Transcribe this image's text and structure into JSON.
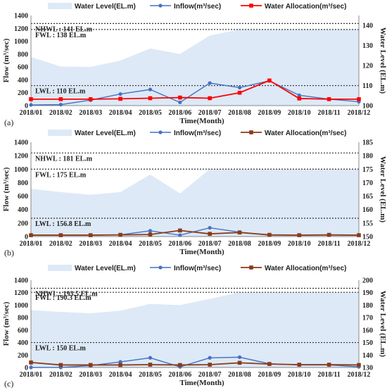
{
  "colors": {
    "water_level": "#dde9f6",
    "inflow": "#4472c4",
    "allocation_a": "#ff0000",
    "allocation_bc": "#8b3a1a",
    "reference": "#333333"
  },
  "chart_data": [
    {
      "type": "line",
      "panel_label": "(a)",
      "categories": [
        "2018/01",
        "2018/02",
        "2018/03",
        "2018/04",
        "2018/05",
        "2018/06",
        "2018/07",
        "2018/08",
        "2018/09",
        "2018/10",
        "2018/11",
        "2018/12"
      ],
      "xlabel": "Time(Month)",
      "ylabel": "Flow (m³/sec)",
      "y2label": "Water Level (EL.m)",
      "ylim": [
        0,
        1400
      ],
      "yticks": [
        0,
        200,
        400,
        600,
        800,
        1000,
        1200,
        1400
      ],
      "y2lim": [
        100,
        145
      ],
      "y2ticks": [
        100,
        110,
        120,
        130,
        140
      ],
      "legend": [
        "Water Level(EL.m)",
        "Inflow(m³/sec)",
        "Water Allocation(m³/sec)"
      ],
      "legend_position": "top",
      "grid": false,
      "series": [
        {
          "name": "Water Level(EL.m)",
          "axis": "right",
          "style": "area",
          "values": [
            124.3,
            119.5,
            119.3,
            122.5,
            128.5,
            125.8,
            135,
            138,
            138,
            138,
            138,
            138
          ]
        },
        {
          "name": "Inflow(m³/sec)",
          "axis": "left",
          "style": "line-circle",
          "values": [
            10,
            15,
            85,
            180,
            250,
            50,
            350,
            280,
            385,
            160,
            100,
            60
          ]
        },
        {
          "name": "Water Allocation(m³/sec)",
          "axis": "left",
          "style": "line-square",
          "values": [
            100,
            100,
            100,
            105,
            115,
            125,
            115,
            200,
            390,
            110,
            100,
            100
          ]
        }
      ],
      "reference_lines": [
        {
          "label": "NHWL : 141 EL.m",
          "value": 141
        },
        {
          "label": "FWL : 138 EL.m",
          "value": 138
        },
        {
          "label": "LWL : 110 EL.m",
          "value": 110
        }
      ]
    },
    {
      "type": "line",
      "panel_label": "(b)",
      "categories": [
        "2018/01",
        "2018/02",
        "2018/03",
        "2018/04",
        "2018/05",
        "2018/06",
        "2018/07",
        "2018/08",
        "2018/09",
        "2018/10",
        "2018/11",
        "2018/12"
      ],
      "xlabel": "Time(Month)",
      "ylabel": "Flow (m³/sec)",
      "y2label": "Water Level (EL.m)",
      "ylim": [
        0,
        1400
      ],
      "yticks": [
        0,
        200,
        400,
        600,
        800,
        1000,
        1200,
        1400
      ],
      "y2lim": [
        150,
        185
      ],
      "y2ticks": [
        150,
        155,
        160,
        165,
        170,
        175,
        180,
        185
      ],
      "legend": [
        "Water Level(EL.m)",
        "Inflow(m³/sec)",
        "Water Allocation(m³/sec)"
      ],
      "legend_position": "top",
      "grid": false,
      "series": [
        {
          "name": "Water Level(EL.m)",
          "axis": "right",
          "style": "area",
          "values": [
            167.7,
            166.5,
            165.5,
            166.5,
            173,
            166,
            175,
            175,
            175,
            175,
            175,
            175
          ]
        },
        {
          "name": "Inflow(m³/sec)",
          "axis": "left",
          "style": "line-circle",
          "values": [
            20,
            20,
            20,
            25,
            85,
            20,
            130,
            65,
            20,
            20,
            20,
            20
          ]
        },
        {
          "name": "Water Allocation(m³/sec)",
          "axis": "left",
          "style": "line-square",
          "values": [
            20,
            20,
            20,
            25,
            30,
            90,
            40,
            60,
            25,
            20,
            25,
            20
          ]
        }
      ],
      "reference_lines": [
        {
          "label": "NHWL : 181 EL.m",
          "value": 181
        },
        {
          "label": "FWL : 175 EL.m",
          "value": 175
        },
        {
          "label": "LWL : 156.8 EL.m",
          "value": 156.8
        }
      ]
    },
    {
      "type": "line",
      "panel_label": "(c)",
      "categories": [
        "2018/01",
        "2018/02",
        "2018/03",
        "2018/04",
        "2018/05",
        "2018/06",
        "2018/07",
        "2018/08",
        "2018/09",
        "2018/10",
        "2018/11",
        "2018/12"
      ],
      "xlabel": "Time(Month)",
      "ylabel": "Flow (m³/sec)",
      "y2label": "Water Level (EL.m)",
      "ylim": [
        0,
        1400
      ],
      "yticks": [
        0,
        200,
        400,
        600,
        800,
        1000,
        1200,
        1400
      ],
      "y2lim": [
        130,
        200
      ],
      "y2ticks": [
        130,
        140,
        150,
        160,
        170,
        180,
        190,
        200
      ],
      "legend": [
        "Water Level(EL.m)",
        "Inflow(m³/sec)",
        "Water Allocation(m³/sec)"
      ],
      "legend_position": "top",
      "grid": false,
      "series": [
        {
          "name": "Water Level(EL.m)",
          "axis": "right",
          "style": "area",
          "values": [
            176,
            174.5,
            173.5,
            175.5,
            181,
            180,
            185,
            190.3,
            190.3,
            190.3,
            190.3,
            190.3
          ]
        },
        {
          "name": "Inflow(m³/sec)",
          "axis": "left",
          "style": "line-circle",
          "values": [
            0,
            0,
            30,
            90,
            155,
            10,
            155,
            165,
            60,
            40,
            40,
            10
          ]
        },
        {
          "name": "Water Allocation(m³/sec)",
          "axis": "left",
          "style": "line-square",
          "values": [
            80,
            40,
            40,
            40,
            45,
            40,
            45,
            75,
            55,
            45,
            45,
            40
          ]
        }
      ],
      "reference_lines": [
        {
          "label": "NHWL : 193.5 EL.m",
          "value": 193.5
        },
        {
          "label": "FWL : 190.3 EL.m",
          "value": 190.3
        },
        {
          "label": "LWL : 150 EL.m",
          "value": 150
        }
      ]
    }
  ]
}
